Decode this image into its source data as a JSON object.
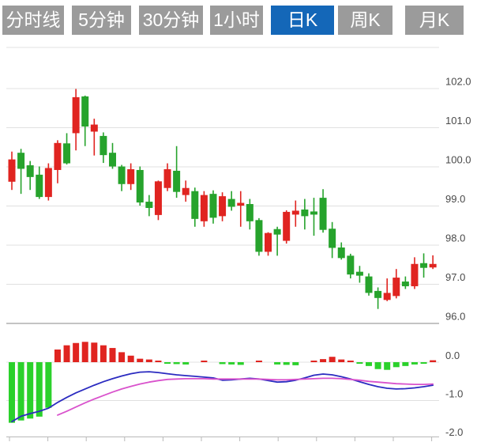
{
  "tabs": {
    "items": [
      {
        "label": "分时线",
        "active": false
      },
      {
        "label": "5分钟",
        "active": false
      },
      {
        "label": "30分钟",
        "active": false
      },
      {
        "label": "1小时",
        "active": false
      },
      {
        "label": "日K",
        "active": true
      },
      {
        "label": "周K",
        "active": false
      },
      {
        "label": "月K",
        "active": false
      }
    ]
  },
  "colors": {
    "tab_bg": "#9b9b9b",
    "tab_active_bg": "#1467b8",
    "tab_text": "#ffffff",
    "candle_up": "#e02420",
    "candle_down": "#26a32c",
    "macd_up": "#e02420",
    "macd_down": "#2bd12b",
    "dif_line": "#2b2bc0",
    "dea_line": "#d952cc",
    "grid": "#e0e0e0",
    "grid_strong": "#c4c4c4",
    "axis": "#b8b8b8",
    "label_text": "#4a4a4a"
  },
  "chart_data": {
    "type": "candlestick+macd",
    "title": "",
    "legend": "none",
    "grid": "on",
    "price_axis": {
      "side": "right",
      "ticks": [
        102.0,
        101.0,
        100.0,
        99.0,
        98.0,
        97.0,
        96.0
      ],
      "labels": [
        "102.0",
        "101.0",
        "100.0",
        "99.0",
        "98.0",
        "97.0",
        "96.0"
      ],
      "range": [
        96.0,
        102.0
      ]
    },
    "macd_axis": {
      "side": "right",
      "ticks": [
        0.0,
        -1.0,
        -2.0
      ],
      "labels": [
        "0.0",
        "-1.0",
        "-2.0"
      ],
      "range": [
        -2.0,
        0.3
      ]
    },
    "candles": [
      {
        "o": 99.62,
        "h": 100.39,
        "l": 99.41,
        "c": 100.19
      },
      {
        "o": 100.36,
        "h": 100.46,
        "l": 99.31,
        "c": 99.95
      },
      {
        "o": 100.04,
        "h": 100.15,
        "l": 99.41,
        "c": 99.74
      },
      {
        "o": 99.8,
        "h": 100.01,
        "l": 99.18,
        "c": 99.23
      },
      {
        "o": 99.23,
        "h": 100.09,
        "l": 99.14,
        "c": 99.97
      },
      {
        "o": 99.92,
        "h": 100.68,
        "l": 99.58,
        "c": 100.61
      },
      {
        "o": 100.6,
        "h": 100.86,
        "l": 100.06,
        "c": 100.09
      },
      {
        "o": 100.86,
        "h": 101.99,
        "l": 100.42,
        "c": 101.78
      },
      {
        "o": 101.8,
        "h": 101.82,
        "l": 100.53,
        "c": 101.03
      },
      {
        "o": 100.9,
        "h": 101.23,
        "l": 100.29,
        "c": 101.08
      },
      {
        "o": 100.79,
        "h": 100.88,
        "l": 100.1,
        "c": 100.3
      },
      {
        "o": 100.36,
        "h": 100.61,
        "l": 99.95,
        "c": 100.01
      },
      {
        "o": 100.01,
        "h": 100.05,
        "l": 99.38,
        "c": 99.56
      },
      {
        "o": 99.56,
        "h": 100.09,
        "l": 99.41,
        "c": 99.94
      },
      {
        "o": 99.92,
        "h": 100.01,
        "l": 99.01,
        "c": 99.09
      },
      {
        "o": 99.11,
        "h": 99.28,
        "l": 98.74,
        "c": 98.95
      },
      {
        "o": 98.77,
        "h": 99.65,
        "l": 98.64,
        "c": 99.63
      },
      {
        "o": 99.46,
        "h": 100.09,
        "l": 99.38,
        "c": 99.94
      },
      {
        "o": 99.9,
        "h": 100.53,
        "l": 99.21,
        "c": 99.36
      },
      {
        "o": 99.28,
        "h": 99.65,
        "l": 99.11,
        "c": 99.46
      },
      {
        "o": 99.38,
        "h": 99.47,
        "l": 98.47,
        "c": 98.67
      },
      {
        "o": 98.61,
        "h": 99.38,
        "l": 98.47,
        "c": 99.28
      },
      {
        "o": 99.31,
        "h": 99.4,
        "l": 98.55,
        "c": 98.7
      },
      {
        "o": 98.74,
        "h": 99.35,
        "l": 98.61,
        "c": 99.25
      },
      {
        "o": 99.18,
        "h": 99.38,
        "l": 98.88,
        "c": 98.98
      },
      {
        "o": 99.01,
        "h": 99.38,
        "l": 98.47,
        "c": 99.08
      },
      {
        "o": 99.05,
        "h": 99.18,
        "l": 98.4,
        "c": 98.61
      },
      {
        "o": 98.64,
        "h": 98.69,
        "l": 97.73,
        "c": 97.83
      },
      {
        "o": 97.83,
        "h": 98.33,
        "l": 97.73,
        "c": 98.31
      },
      {
        "o": 98.41,
        "h": 98.47,
        "l": 97.73,
        "c": 98.27
      },
      {
        "o": 98.11,
        "h": 98.89,
        "l": 98.04,
        "c": 98.85
      },
      {
        "o": 98.78,
        "h": 99.14,
        "l": 98.47,
        "c": 98.88
      },
      {
        "o": 98.91,
        "h": 99.18,
        "l": 98.4,
        "c": 98.74
      },
      {
        "o": 98.86,
        "h": 99.21,
        "l": 98.24,
        "c": 98.78
      },
      {
        "o": 99.21,
        "h": 99.43,
        "l": 98.32,
        "c": 98.39
      },
      {
        "o": 98.42,
        "h": 98.59,
        "l": 97.67,
        "c": 97.93
      },
      {
        "o": 97.94,
        "h": 98.07,
        "l": 97.63,
        "c": 97.67
      },
      {
        "o": 97.73,
        "h": 97.78,
        "l": 97.15,
        "c": 97.25
      },
      {
        "o": 97.32,
        "h": 97.47,
        "l": 97.04,
        "c": 97.22
      },
      {
        "o": 97.2,
        "h": 97.28,
        "l": 96.71,
        "c": 96.78
      },
      {
        "o": 96.83,
        "h": 96.92,
        "l": 96.37,
        "c": 96.65
      },
      {
        "o": 96.6,
        "h": 97.15,
        "l": 96.57,
        "c": 96.78
      },
      {
        "o": 96.7,
        "h": 97.39,
        "l": 96.64,
        "c": 97.17
      },
      {
        "o": 97.07,
        "h": 97.2,
        "l": 96.88,
        "c": 96.95
      },
      {
        "o": 96.95,
        "h": 97.69,
        "l": 96.88,
        "c": 97.52
      },
      {
        "o": 97.54,
        "h": 97.79,
        "l": 97.17,
        "c": 97.42
      },
      {
        "o": 97.43,
        "h": 97.74,
        "l": 97.39,
        "c": 97.52
      }
    ],
    "macd_hist": [
      -1.58,
      -1.52,
      -1.47,
      -1.42,
      -1.19,
      0.33,
      0.44,
      0.5,
      0.53,
      0.51,
      0.44,
      0.37,
      0.26,
      0.17,
      0.09,
      0.07,
      0.04,
      -0.04,
      -0.05,
      -0.06,
      0,
      0.02,
      0,
      -0.05,
      -0.06,
      -0.07,
      0,
      0.02,
      0,
      -0.06,
      -0.07,
      -0.08,
      0,
      0.04,
      0.08,
      0.14,
      0.07,
      0.03,
      -0.04,
      -0.1,
      -0.18,
      -0.2,
      -0.13,
      -0.1,
      -0.06,
      -0.04,
      0.05
    ],
    "dif": [
      -1.55,
      -1.41,
      -1.34,
      -1.28,
      -1.2,
      -1.05,
      -0.92,
      -0.8,
      -0.7,
      -0.6,
      -0.51,
      -0.43,
      -0.36,
      -0.3,
      -0.26,
      -0.25,
      -0.27,
      -0.3,
      -0.33,
      -0.35,
      -0.37,
      -0.39,
      -0.41,
      -0.47,
      -0.46,
      -0.44,
      -0.42,
      -0.44,
      -0.48,
      -0.52,
      -0.51,
      -0.47,
      -0.41,
      -0.34,
      -0.31,
      -0.33,
      -0.38,
      -0.44,
      -0.51,
      -0.58,
      -0.64,
      -0.68,
      -0.7,
      -0.69,
      -0.67,
      -0.64,
      -0.6
    ],
    "dea": [
      null,
      null,
      null,
      null,
      null,
      -1.38,
      -1.28,
      -1.17,
      -1.06,
      -0.96,
      -0.87,
      -0.78,
      -0.7,
      -0.63,
      -0.57,
      -0.52,
      -0.48,
      -0.45,
      -0.44,
      -0.43,
      -0.43,
      -0.43,
      -0.44,
      -0.44,
      -0.44,
      -0.44,
      -0.44,
      -0.44,
      -0.45,
      -0.46,
      -0.46,
      -0.45,
      -0.44,
      -0.43,
      -0.42,
      -0.42,
      -0.43,
      -0.45,
      -0.47,
      -0.5,
      -0.52,
      -0.54,
      -0.56,
      -0.57,
      -0.58,
      -0.58,
      -0.57
    ]
  }
}
